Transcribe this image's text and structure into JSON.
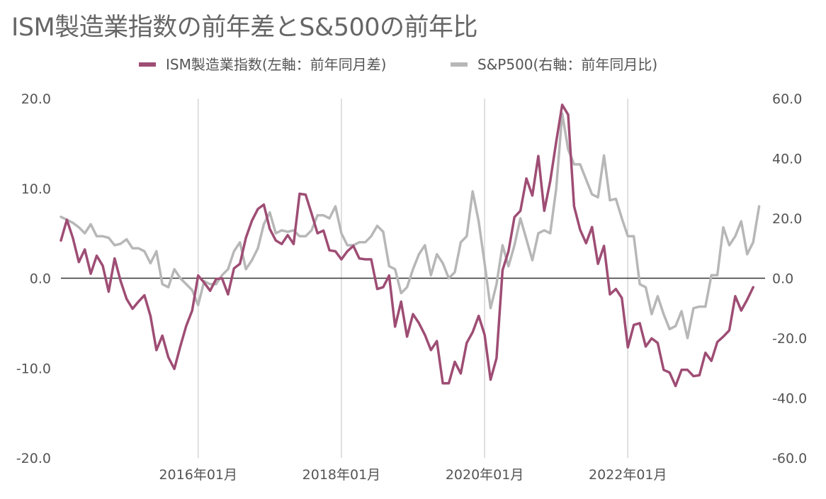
{
  "chart_data": {
    "type": "line",
    "title": "ISM製造業指数の前年差とS&500の前年比",
    "legend_position": "top",
    "left_axis": {
      "ticks": [
        "20.0",
        "10.0",
        "0.0",
        "-10.0",
        "-20.0"
      ],
      "values": [
        20,
        10,
        0,
        -10,
        -20
      ],
      "ylim": [
        -20,
        20
      ]
    },
    "right_axis": {
      "ticks": [
        "60.0",
        "40.0",
        "20.0",
        "0.0",
        "-20.0",
        "-40.0",
        "-60.0"
      ],
      "values": [
        60,
        40,
        20,
        0,
        -20,
        -40,
        -60
      ],
      "ylim": [
        -60,
        60
      ]
    },
    "x_ticks": [
      "2016年01月",
      "2018年01月",
      "2020年01月",
      "2022年01月"
    ],
    "x_tick_dates": [
      "2016-01",
      "2018-01",
      "2020-01",
      "2022-01"
    ],
    "x_range": [
      "2014-02",
      "2023-12"
    ],
    "grid": {
      "vertical": true,
      "horizontal": false,
      "zero_line": true
    },
    "series": [
      {
        "name": "ISM製造業指数(左軸：前年同月差)",
        "axis": "left",
        "color": "#9e4d74",
        "start": "2014-02",
        "frequency": "monthly",
        "values": [
          4.2,
          6.5,
          4.5,
          1.8,
          3.2,
          0.5,
          2.5,
          1.4,
          -1.5,
          2.2,
          -0.3,
          -2.3,
          -3.4,
          -2.6,
          -1.9,
          -4.2,
          -8.0,
          -6.4,
          -8.8,
          -10.1,
          -7.6,
          -5.3,
          -3.6,
          0.3,
          -0.5,
          -1.4,
          -0.1,
          0.0,
          -1.8,
          1.1,
          1.6,
          4.5,
          6.4,
          7.7,
          8.2,
          5.5,
          4.2,
          3.8,
          4.8,
          3.8,
          9.4,
          9.3,
          7.2,
          5.0,
          5.3,
          3.1,
          3.0,
          2.1,
          3.0,
          3.6,
          2.2,
          2.1,
          2.1,
          -1.2,
          -1.0,
          0.3,
          -5.4,
          -2.6,
          -6.5,
          -4.0,
          -5.0,
          -6.3,
          -8.0,
          -7.0,
          -11.7,
          -11.7,
          -9.3,
          -10.6,
          -7.2,
          -6.0,
          -4.2,
          -6.3,
          -11.3,
          -8.9,
          0.9,
          3.0,
          6.8,
          7.5,
          11.1,
          9.2,
          13.6,
          7.5,
          10.8,
          15.2,
          19.3,
          18.2,
          8.0,
          5.4,
          3.9,
          5.7,
          1.6,
          3.6,
          -1.8,
          -1.2,
          -2.2,
          -7.7,
          -5.2,
          -5.0,
          -7.6,
          -6.7,
          -7.2,
          -10.2,
          -10.5,
          -12.0,
          -10.2,
          -10.2,
          -10.9,
          -10.8,
          -8.3,
          -9.2,
          -7.1,
          -6.5,
          -5.8,
          -2.0,
          -3.6,
          -2.4,
          -1.0
        ]
      },
      {
        "name": "S&P500(右軸：前年同月比)",
        "axis": "right",
        "color": "#b7b7b7",
        "start": "2014-02",
        "frequency": "monthly",
        "values": [
          20.5,
          19.5,
          18.5,
          17,
          15,
          18,
          14,
          14,
          13.5,
          11,
          11.5,
          13,
          10,
          10,
          9,
          5,
          9,
          -2,
          -3,
          3,
          0,
          -2,
          -4,
          -9,
          -1,
          -2,
          -2,
          1,
          3,
          9,
          12,
          3,
          6,
          10,
          18,
          22,
          15,
          16,
          15.5,
          16,
          14,
          14,
          16,
          21,
          21,
          20,
          24,
          15,
          11,
          11,
          12,
          12,
          14,
          17.5,
          15.5,
          4,
          3,
          -5,
          -3,
          3,
          8,
          11,
          1,
          8,
          5,
          0,
          2,
          12,
          14,
          29,
          19,
          5,
          -10,
          -2,
          11,
          4,
          11,
          20,
          13,
          6,
          15,
          16,
          15,
          30,
          55,
          43,
          38,
          38,
          33,
          28,
          27,
          41,
          26,
          26.5,
          20,
          14,
          14,
          -2,
          -3,
          -12,
          -6,
          -12,
          -17,
          -16,
          -11,
          -20,
          -10,
          -9.5,
          -9.5,
          1,
          1,
          17,
          11,
          14,
          19,
          8,
          12,
          24
        ]
      }
    ]
  }
}
